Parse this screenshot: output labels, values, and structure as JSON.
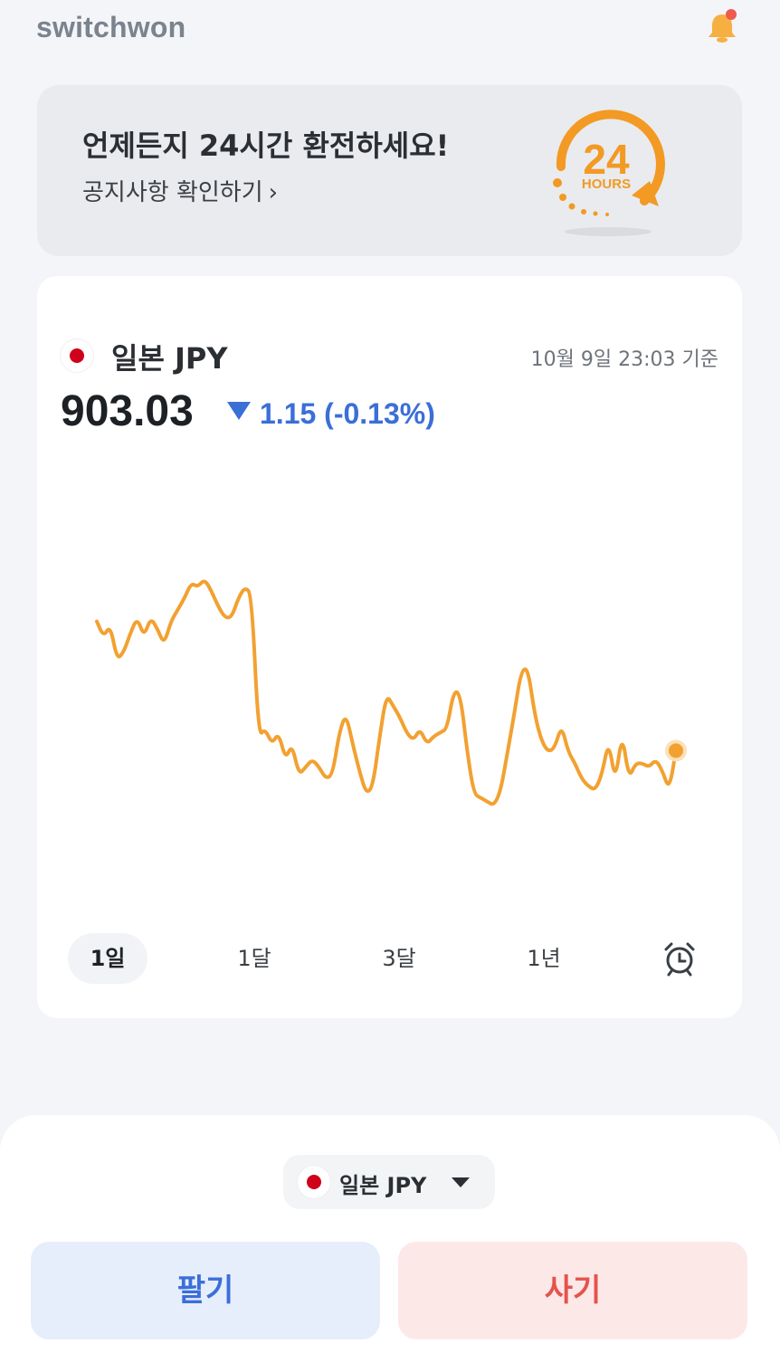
{
  "header": {
    "logo": "switchwon",
    "bell_icon": "bell-icon",
    "notification_dot_color": "#f05a4f"
  },
  "banner": {
    "title": "언제든지 24시간 환전하세요!",
    "link_label": "공지사항 확인하기",
    "link_chevron": "›",
    "badge": {
      "number": "24",
      "label": "HOURS",
      "color": "#f29a24"
    }
  },
  "rate_card": {
    "currency_label": "일본 JPY",
    "flag_icon": "japan-flag-icon",
    "timestamp": "10월 9일 23:03 기준",
    "rate": "903.03",
    "change": "1.15 (-0.13%)",
    "change_direction": "down",
    "change_color": "#3b6fd8",
    "line_color": "#f2a131",
    "period_tabs": [
      {
        "label": "1일",
        "active": true
      },
      {
        "label": "1달",
        "active": false
      },
      {
        "label": "3달",
        "active": false
      },
      {
        "label": "1년",
        "active": false
      }
    ],
    "alarm_icon": "alarm-clock-icon"
  },
  "chart_data": {
    "type": "line",
    "title": "",
    "xlabel": "",
    "ylabel": "",
    "grid": false,
    "series": [
      {
        "values": [
          906.4,
          906.0,
          906.3,
          905.4,
          905.6,
          906.1,
          906.5,
          906.0,
          906.5,
          906.2,
          905.8,
          906.4,
          906.7,
          907.0,
          907.4,
          907.3,
          907.5,
          907.2,
          906.8,
          906.5,
          906.5,
          907.0,
          907.3,
          907.1,
          903.4,
          903.6,
          903.2,
          903.5,
          902.8,
          903.2,
          902.4,
          902.6,
          902.8,
          902.6,
          902.3,
          902.4,
          903.5,
          904.0,
          903.2,
          902.5,
          901.9,
          902.1,
          903.4,
          904.5,
          904.2,
          903.9,
          903.5,
          903.3,
          903.6,
          903.2,
          903.4,
          903.5,
          903.6,
          904.6,
          904.5,
          903.0,
          901.9,
          901.8,
          901.7,
          901.6,
          902.0,
          903.0,
          904.0,
          905.1,
          905.2,
          904.0,
          903.3,
          903.0,
          903.1,
          903.7,
          903.0,
          902.7,
          902.3,
          902.1,
          902.0,
          902.4,
          903.3,
          902.2,
          903.5,
          902.3,
          902.7,
          902.7,
          902.6,
          902.8,
          902.5,
          902.0,
          903.03
        ]
      }
    ],
    "current_value": 903.03
  },
  "bottom_sheet": {
    "selector_label": "일본 JPY",
    "selector_flag_icon": "japan-flag-icon",
    "sell_label": "팔기",
    "buy_label": "사기"
  }
}
